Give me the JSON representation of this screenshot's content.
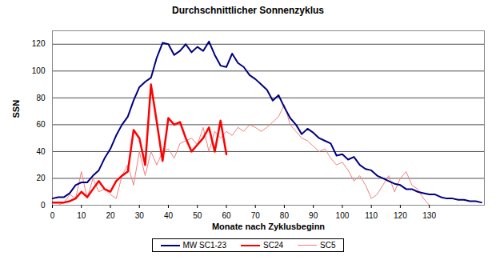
{
  "chart_data": {
    "type": "line",
    "title": "Durchschnittlicher Sonnenzyklus",
    "x_label": "Monate nach Zyklusbeginn",
    "y_label": "SSN",
    "x": [
      0,
      2,
      4,
      6,
      8,
      10,
      12,
      14,
      16,
      18,
      20,
      22,
      24,
      26,
      28,
      30,
      32,
      34,
      36,
      38,
      40,
      42,
      44,
      46,
      48,
      50,
      52,
      54,
      56,
      58,
      60,
      62,
      64,
      66,
      68,
      70,
      72,
      74,
      76,
      78,
      80,
      82,
      84,
      86,
      88,
      90,
      92,
      94,
      96,
      98,
      100,
      102,
      104,
      106,
      108,
      110,
      112,
      114,
      116,
      118,
      120,
      122,
      124,
      126,
      128,
      130,
      132,
      134,
      136,
      138,
      140,
      142,
      144,
      146,
      148
    ],
    "series": [
      {
        "name": "MW SC1-23",
        "color": "#000080",
        "values": [
          5,
          6,
          6,
          9,
          15,
          17,
          17,
          22,
          26,
          35,
          42,
          52,
          60,
          66,
          78,
          88,
          92,
          95,
          110,
          121,
          120,
          112,
          115,
          120,
          114,
          118,
          115,
          122,
          112,
          104,
          103,
          113,
          106,
          103,
          97,
          94,
          90,
          86,
          78,
          82,
          73,
          65,
          60,
          53,
          57,
          54,
          50,
          48,
          46,
          37,
          38,
          34,
          36,
          30,
          27,
          26,
          22,
          20,
          18,
          16,
          15,
          12,
          12,
          10,
          9,
          8,
          8,
          6,
          5,
          5,
          4,
          4,
          3,
          3,
          2
        ]
      },
      {
        "name": "SC24",
        "color": "#ff0000",
        "values": [
          2,
          2,
          2,
          3,
          5,
          10,
          6,
          12,
          18,
          12,
          10,
          18,
          22,
          25,
          56,
          50,
          30,
          90,
          62,
          33,
          65,
          60,
          62,
          50,
          40,
          45,
          50,
          58,
          40,
          63,
          38,
          null,
          null,
          null,
          null,
          null,
          null,
          null,
          null,
          null,
          null,
          null,
          null,
          null,
          null,
          null,
          null,
          null,
          null,
          null,
          null,
          null,
          null,
          null,
          null,
          null,
          null,
          null,
          null,
          null,
          null,
          null,
          null,
          null,
          null,
          null,
          null,
          null,
          null,
          null,
          null,
          null,
          null,
          null,
          null
        ]
      },
      {
        "name": "SC5",
        "color": "#ee8080",
        "values": [
          0,
          0,
          2,
          8,
          5,
          25,
          5,
          20,
          10,
          12,
          8,
          5,
          22,
          30,
          15,
          40,
          22,
          40,
          30,
          40,
          42,
          35,
          46,
          48,
          50,
          45,
          58,
          40,
          55,
          50,
          55,
          52,
          58,
          55,
          60,
          58,
          55,
          58,
          62,
          66,
          75,
          60,
          55,
          50,
          48,
          44,
          40,
          42,
          35,
          30,
          32,
          26,
          18,
          22,
          15,
          5,
          8,
          15,
          22,
          10,
          20,
          25,
          15,
          12,
          5,
          0,
          null,
          null,
          null,
          null,
          null,
          null,
          null,
          null,
          null
        ]
      }
    ],
    "xlim": [
      0,
      149
    ],
    "xticks": [
      0,
      10,
      20,
      30,
      40,
      50,
      60,
      70,
      80,
      90,
      100,
      110,
      120,
      130
    ],
    "ylim": [
      0,
      130
    ],
    "yticks": [
      0,
      20,
      40,
      60,
      80,
      100,
      120
    ],
    "grid": true,
    "legend": "bottom"
  }
}
